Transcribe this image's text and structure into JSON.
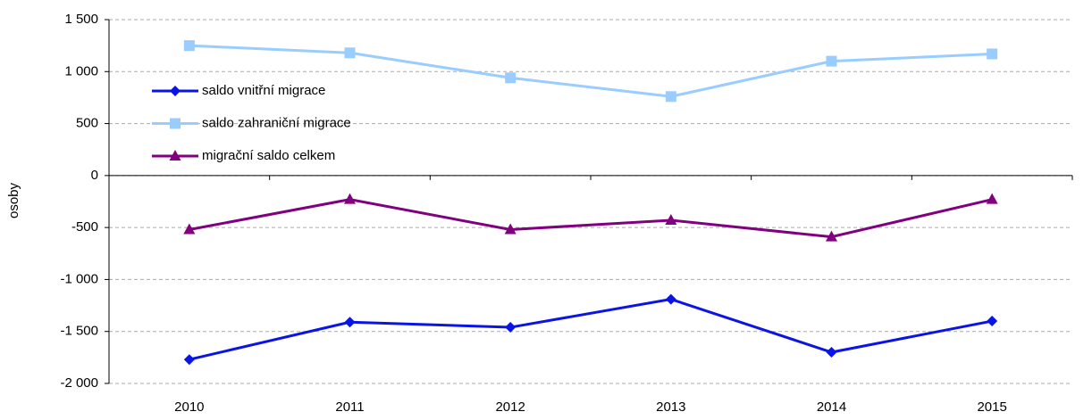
{
  "chart_data": {
    "type": "line",
    "ylabel": "osoby",
    "categories": [
      "2010",
      "2011",
      "2012",
      "2013",
      "2014",
      "2015"
    ],
    "series": [
      {
        "name": "saldo vnitřní migrace",
        "color": "#0a14e6",
        "marker": "diamond",
        "values": [
          -1770,
          -1410,
          -1460,
          -1190,
          -1700,
          -1400
        ]
      },
      {
        "name": "saldo zahraniční migrace",
        "color": "#99ccff",
        "marker": "square",
        "values": [
          1250,
          1180,
          940,
          760,
          1100,
          1170
        ]
      },
      {
        "name": "migrační saldo celkem",
        "color": "#800080",
        "marker": "triangle",
        "values": [
          -520,
          -230,
          -520,
          -430,
          -590,
          -230
        ]
      }
    ],
    "ylim": [
      -2000,
      1500
    ],
    "yticks": [
      {
        "value": -2000,
        "label": "-2 000"
      },
      {
        "value": -1500,
        "label": "-1 500"
      },
      {
        "value": -1000,
        "label": "-1 000"
      },
      -500,
      0,
      500,
      {
        "value": 1000,
        "label": "1 000"
      },
      {
        "value": 1500,
        "label": "1 500"
      }
    ],
    "grid": true,
    "legend": "upper-left"
  }
}
